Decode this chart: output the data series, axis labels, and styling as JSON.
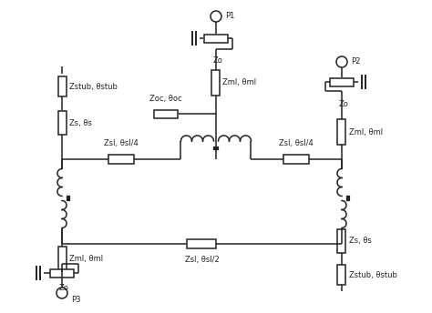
{
  "background": "#ffffff",
  "line_color": "#222222",
  "lw": 1.1,
  "labels": {
    "P1": "P1",
    "P2": "P2",
    "P3": "P3",
    "Zo_p1": "Zo",
    "Zo_p2": "Zo",
    "Zo_p3": "Zo",
    "Zml_top": "Zml, θml",
    "Zml_p2": "Zml, θml",
    "Zml_p3": "Zml, θml",
    "Zoc": "Zoc, θoc",
    "Zs_left": "Zs, θs",
    "Zs_right": "Zs, θs",
    "Zstub_left": "Zstub, θstub",
    "Zstub_right": "Zstub, θstub",
    "Zsl_left": "Zsl, θsl/4",
    "Zsl_right": "Zsl, θsl/4",
    "Zsl_bot": "Zsl, θsl/2"
  },
  "fs": 6.0
}
